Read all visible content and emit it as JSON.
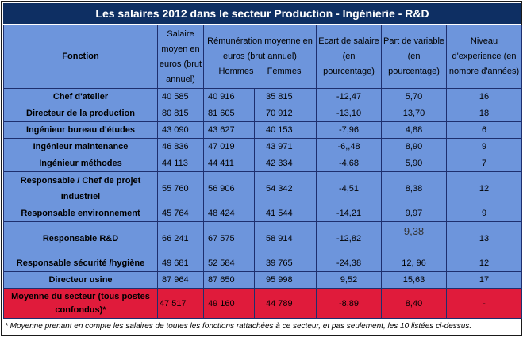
{
  "title": "Les salaires 2012 dans le secteur Production - Ingénierie - R&D",
  "headers": {
    "fonction": "Fonction",
    "salaire_lines": [
      "Salaire",
      "moyen en",
      "euros (brut",
      "annuel)"
    ],
    "remuneration_lines": [
      "Rémunération moyenne en",
      "euros (brut annuel)"
    ],
    "hommes": "Hommes",
    "femmes": "Femmes",
    "ecart_lines": [
      "Ecart de salaire",
      "(en",
      "pourcentage)"
    ],
    "variable_lines": [
      "Part de variable",
      "(en",
      "pourcentage)"
    ],
    "niveau_lines": [
      "Niveau",
      "d'experience (en",
      "nombre d'années)"
    ]
  },
  "rows": [
    {
      "fonction": [
        "Chef d'atelier"
      ],
      "salaire": "40 585",
      "hommes": "40 916",
      "femmes": "35 815",
      "ecart": "-12,47",
      "variable": "5,70",
      "niveau": "16"
    },
    {
      "fonction": [
        "Directeur de la production"
      ],
      "salaire": "80 815",
      "hommes": "81 605",
      "femmes": "70 912",
      "ecart": "-13,10",
      "variable": "13,70",
      "niveau": "18"
    },
    {
      "fonction": [
        "Ingénieur bureau d'études"
      ],
      "salaire": "43 090",
      "hommes": "43 627",
      "femmes": "40 153",
      "ecart": "-7,96",
      "variable": "4,88",
      "niveau": "6"
    },
    {
      "fonction": [
        "Ingénieur maintenance"
      ],
      "salaire": "46 836",
      "hommes": "47 019",
      "femmes": "43 971",
      "ecart": "-6,,48",
      "variable": "8,90",
      "niveau": "9"
    },
    {
      "fonction": [
        "Ingénieur méthodes"
      ],
      "salaire": "44 113",
      "hommes": "44 411",
      "femmes": "42 334",
      "ecart": "-4,68",
      "variable": "5,90",
      "niveau": "7"
    },
    {
      "fonction": [
        "Responsable / Chef de projet",
        "industriel"
      ],
      "salaire": "55 760",
      "hommes": "56 906",
      "femmes": "54 342",
      "ecart": "-4,51",
      "variable": "8,38",
      "niveau": "12"
    },
    {
      "fonction": [
        "Responsable environnement"
      ],
      "salaire": "45 764",
      "hommes": "48 424",
      "femmes": "41 544",
      "ecart": "-14,21",
      "variable": "9,97",
      "niveau": "9"
    },
    {
      "fonction": [
        "Responsable R&D"
      ],
      "salaire": "66 241",
      "hommes": "67 575",
      "femmes": "58 914",
      "ecart": "-12,82",
      "variable": "9,38",
      "niveau": "13"
    },
    {
      "fonction": [
        "Responsable sécurité /hygiène"
      ],
      "salaire": "49 681",
      "hommes": "52 584",
      "femmes": "39 765",
      "ecart": "-24,38",
      "variable": "12, 96",
      "niveau": "12"
    },
    {
      "fonction": [
        "Directeur usine"
      ],
      "salaire": "87 964",
      "hommes": "87 650",
      "femmes": "95 998",
      "ecart": "9,52",
      "variable": "15,63",
      "niveau": "17"
    }
  ],
  "average": {
    "fonction": [
      "Moyenne du secteur (tous postes",
      "confondus)*"
    ],
    "salaire": "47 517",
    "hommes": "49 160",
    "femmes": "44 789",
    "ecart": "-8,89",
    "variable": "8,40",
    "niveau": "-"
  },
  "footnote": "* Moyenne prenant en compte les salaires de toutes les fonctions rattachées à ce secteur, et pas seulement, les 10 listées ci-dessus.",
  "colors": {
    "title_bg": "#0e2f63",
    "cell_bg": "#6d95dc",
    "average_bg": "#e01b3b",
    "border": "#1e2f6e"
  }
}
